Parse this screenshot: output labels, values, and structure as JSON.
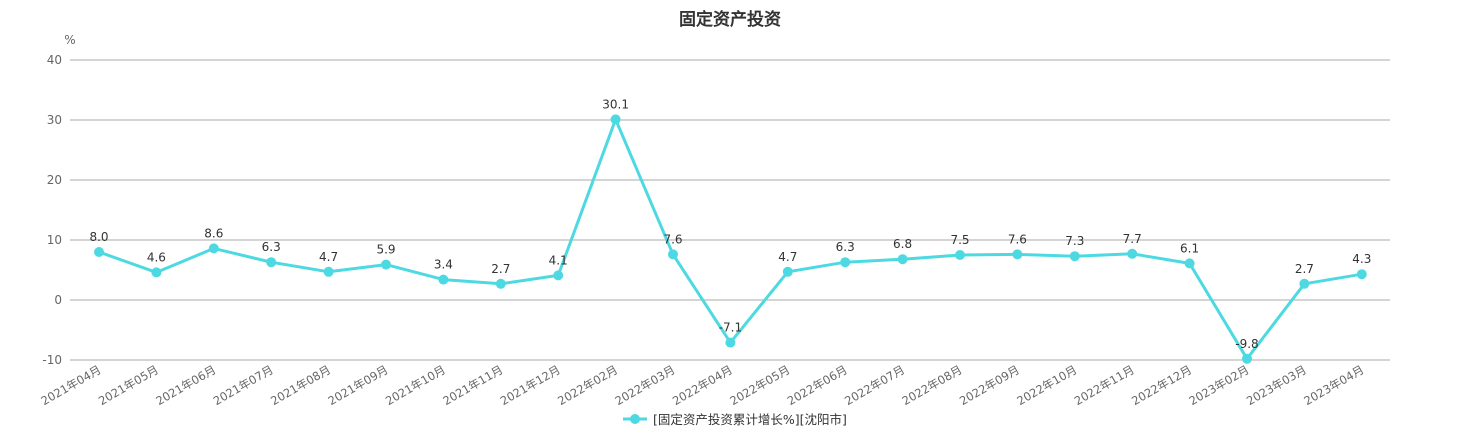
{
  "chart_data": {
    "type": "line",
    "title": "固定资产投资",
    "y_unit": "%",
    "ylim": [
      -10,
      40
    ],
    "yticks": [
      40,
      30,
      20,
      10,
      0,
      -10
    ],
    "grid": true,
    "legend_position": "bottom-center",
    "color": "#4dd9e2",
    "categories": [
      "2021年04月",
      "2021年05月",
      "2021年06月",
      "2021年07月",
      "2021年08月",
      "2021年09月",
      "2021年10月",
      "2021年11月",
      "2021年12月",
      "2022年02月",
      "2022年03月",
      "2022年04月",
      "2022年05月",
      "2022年06月",
      "2022年07月",
      "2022年08月",
      "2022年09月",
      "2022年10月",
      "2022年11月",
      "2022年12月",
      "2023年02月",
      "2023年03月",
      "2023年04月"
    ],
    "series": [
      {
        "name": "[固定资产投资累计增长%][沈阳市]",
        "values": [
          8.0,
          4.6,
          8.6,
          6.3,
          4.7,
          5.9,
          3.4,
          2.7,
          4.1,
          30.1,
          7.6,
          -7.1,
          4.7,
          6.3,
          6.8,
          7.5,
          7.6,
          7.3,
          7.7,
          6.1,
          -9.8,
          2.7,
          4.3
        ],
        "labels": [
          "8.0",
          "4.6",
          "8.6",
          "6.3",
          "4.7",
          "5.9",
          "3.4",
          "2.7",
          "4.1",
          "30.1",
          "7.6",
          "-7.1",
          "4.7",
          "6.3",
          "6.8",
          "7.5",
          "7.6",
          "7.3",
          "7.7",
          "6.1",
          "-9.8",
          "2.7",
          "4.3"
        ]
      }
    ]
  }
}
